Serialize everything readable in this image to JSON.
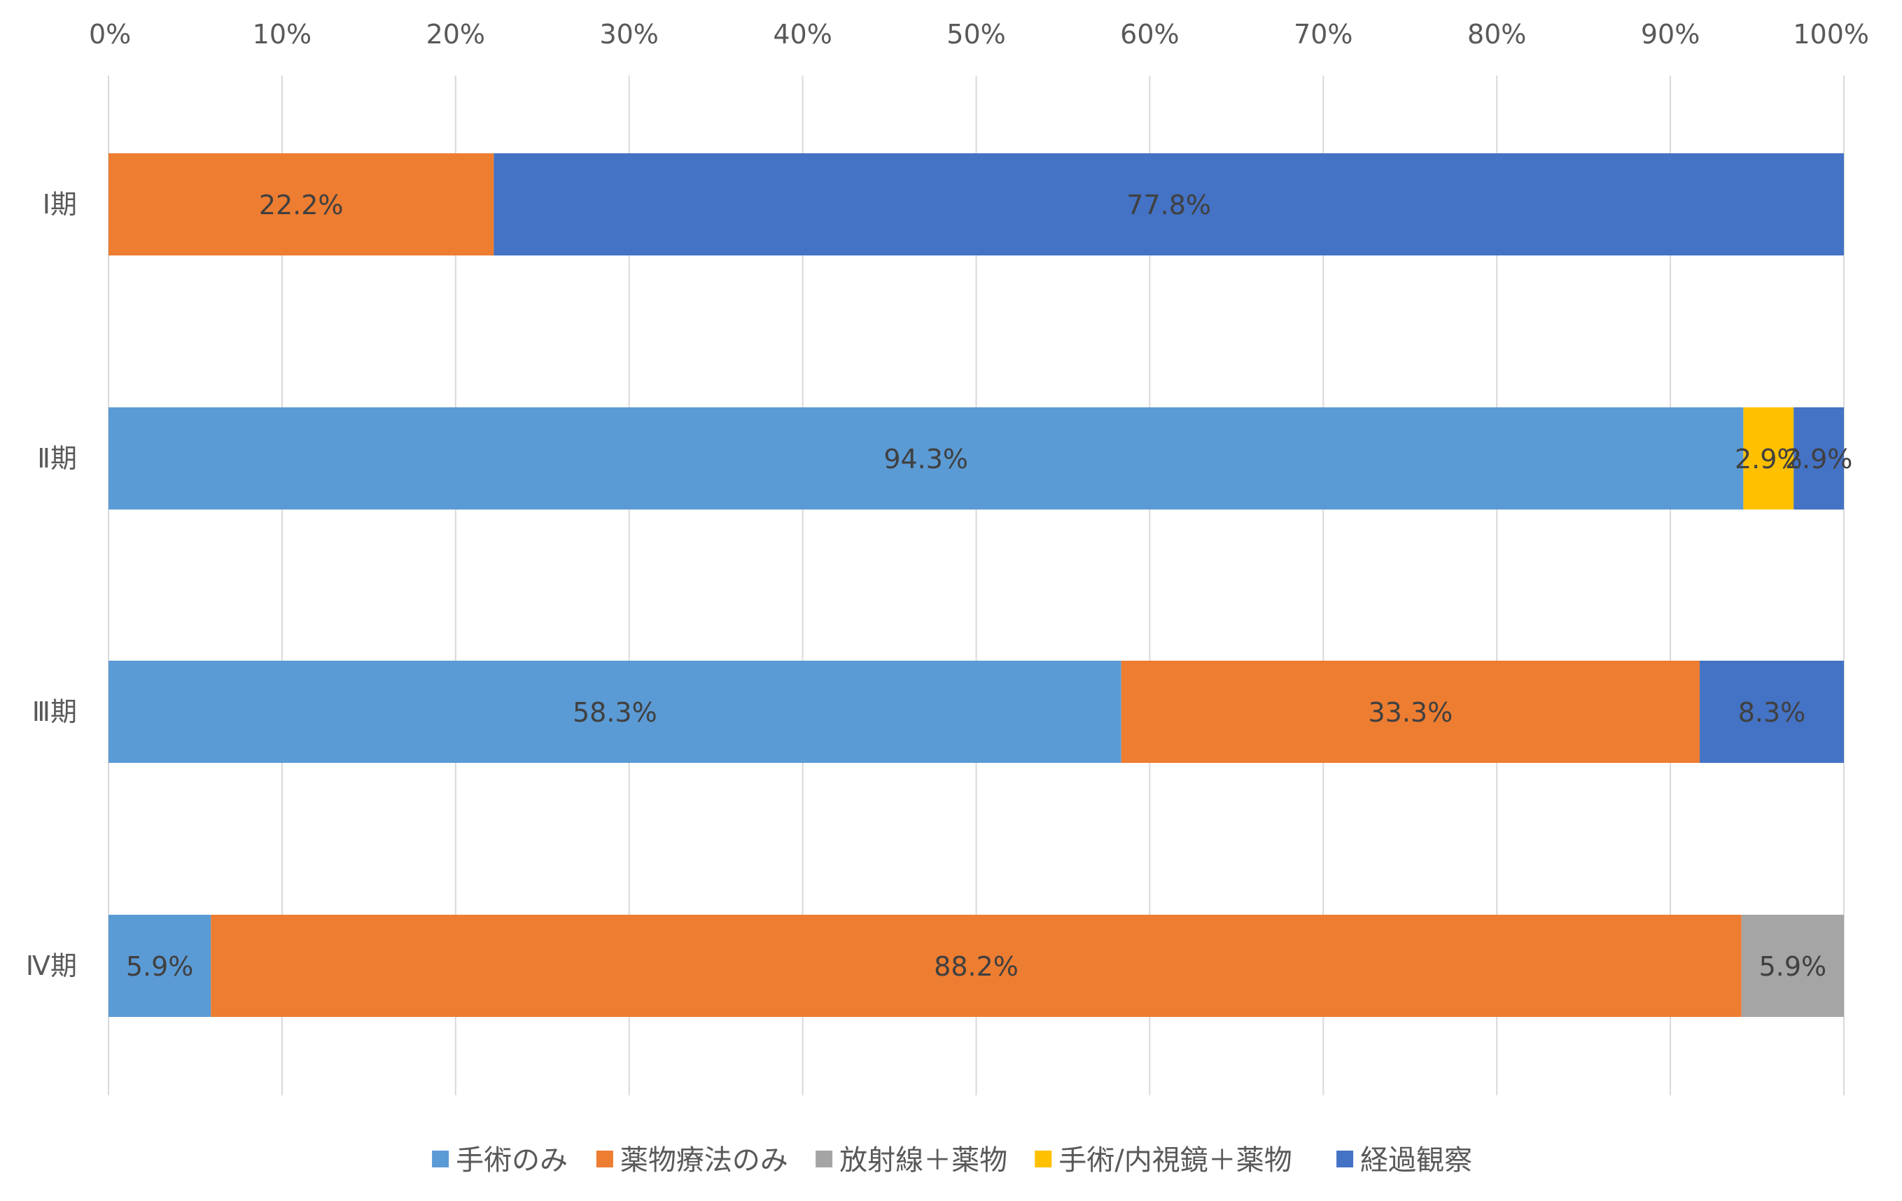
{
  "chart_data": {
    "type": "bar",
    "orientation": "horizontal",
    "stacking": "percent",
    "title": "",
    "xlabel": "",
    "ylabel": "",
    "xlim": [
      0,
      100
    ],
    "x_ticks": [
      "0%",
      "10%",
      "20%",
      "30%",
      "40%",
      "50%",
      "60%",
      "70%",
      "80%",
      "90%",
      "100%"
    ],
    "x_axis_position": "top",
    "grid": true,
    "legend_position": "bottom",
    "categories": [
      "Ⅰ期",
      "Ⅱ期",
      "Ⅲ期",
      "Ⅳ期"
    ],
    "series": [
      {
        "name": "手術のみ",
        "color": "#5B9BD5",
        "values": [
          0,
          94.3,
          58.3,
          5.9
        ]
      },
      {
        "name": "薬物療法のみ",
        "color": "#ED7D31",
        "values": [
          22.2,
          0,
          33.3,
          88.2
        ]
      },
      {
        "name": "放射線＋薬物",
        "color": "#A5A5A5",
        "values": [
          0,
          0,
          0,
          5.9
        ]
      },
      {
        "name": "手術/内視鏡＋薬物",
        "color": "#FFC000",
        "values": [
          0,
          2.9,
          0,
          0
        ]
      },
      {
        "name": "経過観察",
        "color": "#4472C4",
        "values": [
          77.8,
          2.9,
          8.3,
          0
        ]
      }
    ],
    "data_labels": [
      [
        "",
        "22.2%",
        "",
        "",
        "77.8%"
      ],
      [
        "94.3%",
        "",
        "",
        "2.9%",
        "2.9%"
      ],
      [
        "58.3%",
        "33.3%",
        "",
        "",
        "8.3%"
      ],
      [
        "5.9%",
        "88.2%",
        "5.9%",
        "",
        ""
      ]
    ]
  },
  "colors": {
    "gridline": "#D9D9D9",
    "tick_text": "#595959",
    "data_label_text": "#404040",
    "background": "#FFFFFF"
  }
}
